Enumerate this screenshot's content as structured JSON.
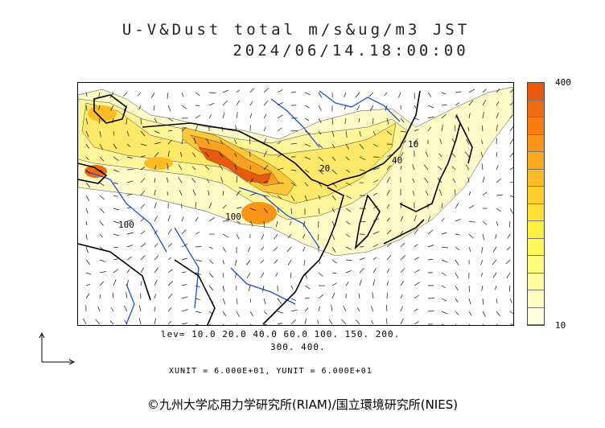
{
  "header": {
    "title": "U-V&Dust total m/s&ug/m3 JST",
    "timestamp": "2024/06/14.18:00:00"
  },
  "colorbar": {
    "max_label": "400",
    "min_label": "10",
    "colors": [
      "#e85a10",
      "#f06a10",
      "#f57e10",
      "#f89418",
      "#faa820",
      "#fcbc28",
      "#fdd030",
      "#fee038",
      "#ffee40",
      "#fff85a",
      "#fffa80",
      "#fffca0",
      "#fffdc0",
      "#fffee0"
    ]
  },
  "levels": {
    "line1": "lev= 10.0 20.0 40.0 60.0 100. 150. 200.",
    "line2": "300. 400."
  },
  "units": {
    "text": "XUNIT = 6.000E+01, YUNIT = 6.000E+01"
  },
  "contour_labels": [
    "100",
    "10",
    "40",
    "100",
    "20"
  ],
  "copyright": "©九州大学応用力学研究所(RIAM)/国立環境研究所(NIES)",
  "palette": {
    "coast": "#000000",
    "river": "#1a4fe0",
    "vector": "#111111",
    "dust_low": "#fffab0",
    "dust_high": "#e85a10"
  }
}
